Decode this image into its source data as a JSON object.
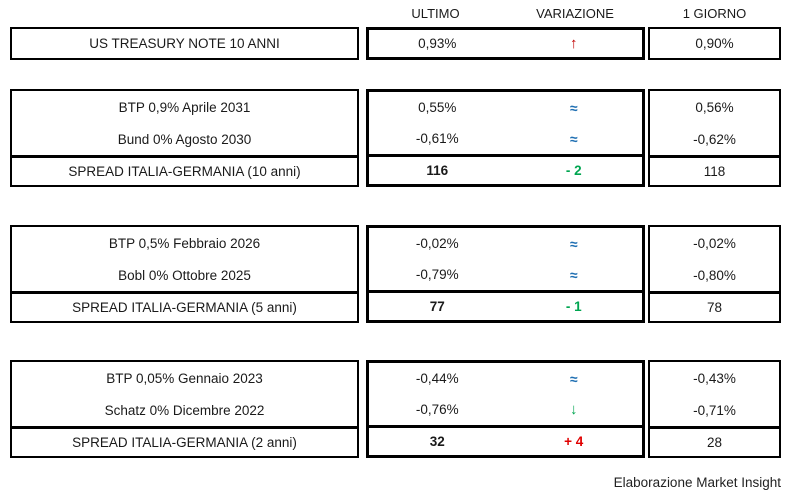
{
  "header": {
    "columns": [
      "ULTIMO",
      "VARIAZIONE",
      "1 GIORNO"
    ]
  },
  "sections": [
    {
      "rows": [
        {
          "label": "US TREASURY NOTE 10 ANNI",
          "ultimo": "0,93%",
          "var": "↑",
          "var_meaning": "up",
          "giorno": "0,90%"
        }
      ]
    },
    {
      "rows": [
        {
          "label": "BTP 0,9% Aprile 2031",
          "ultimo": "0,55%",
          "var": "≈",
          "var_meaning": "unchanged",
          "giorno": "0,56%"
        },
        {
          "label": "Bund 0% Agosto 2030",
          "ultimo": "-0,61%",
          "var": "≈",
          "var_meaning": "unchanged",
          "giorno": "-0,62%"
        },
        {
          "label": "SPREAD ITALIA-GERMANIA (10 anni)",
          "ultimo": "116",
          "var": "- 2",
          "var_meaning": "down-2",
          "giorno": "118",
          "spread": true
        }
      ]
    },
    {
      "rows": [
        {
          "label": "BTP 0,5% Febbraio 2026",
          "ultimo": "-0,02%",
          "var": "≈",
          "var_meaning": "unchanged",
          "giorno": "-0,02%"
        },
        {
          "label": "Bobl 0% Ottobre 2025",
          "ultimo": "-0,79%",
          "var": "≈",
          "var_meaning": "unchanged",
          "giorno": "-0,80%"
        },
        {
          "label": "SPREAD ITALIA-GERMANIA (5 anni)",
          "ultimo": "77",
          "var": "- 1",
          "var_meaning": "down-1",
          "giorno": "78",
          "spread": true
        }
      ]
    },
    {
      "rows": [
        {
          "label": "BTP 0,05% Gennaio 2023",
          "ultimo": "-0,44%",
          "var": "≈",
          "var_meaning": "unchanged",
          "giorno": "-0,43%"
        },
        {
          "label": "Schatz 0% Dicembre 2022",
          "ultimo": "-0,76%",
          "var": "↓",
          "var_meaning": "down",
          "giorno": "-0,71%"
        },
        {
          "label": "SPREAD ITALIA-GERMANIA (2 anni)",
          "ultimo": "32",
          "var": "+ 4",
          "var_meaning": "up-4",
          "giorno": "28",
          "spread": true
        }
      ]
    }
  ],
  "footer": {
    "text": "Elaborazione Market Insight"
  },
  "colors": {
    "border": "#000000",
    "text": "#1a1a1a",
    "arrow_up_red": "#c00000",
    "spread_up_red": "#e00000",
    "green": "#00a550",
    "approx_blue": "#1f6fb2"
  }
}
